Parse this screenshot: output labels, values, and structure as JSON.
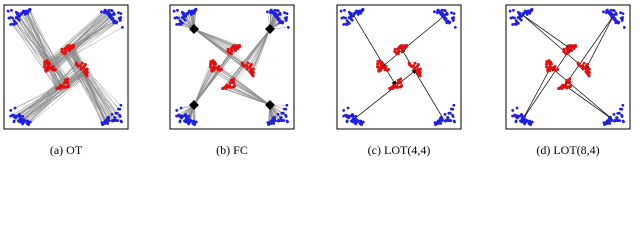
{
  "panels": [
    {
      "caption": "(a) OT"
    },
    {
      "caption": "(b) FC"
    },
    {
      "caption": "(c) LOT(4,4)"
    },
    {
      "caption": "(d) LOT(8,4)"
    }
  ]
}
